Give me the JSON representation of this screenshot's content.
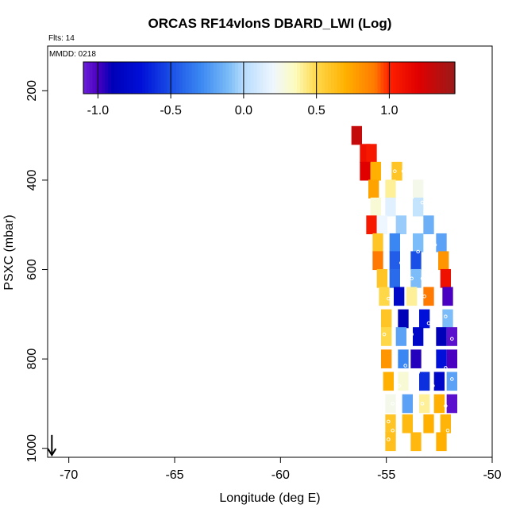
{
  "chart_data": {
    "type": "heatmap",
    "title": "ORCAS RF14vlonS DBARD_LWI (Log)",
    "annotation_flts": "Flts: 14",
    "annotation_mmdd": "MMDD: 0218",
    "xlabel": "Longitude (deg E)",
    "ylabel": "PSXC (mbar)",
    "xlim": [
      -71,
      -50
    ],
    "ylim": [
      1020,
      100
    ],
    "x_ticks": [
      -70,
      -65,
      -60,
      -55,
      -50
    ],
    "x_tick_labels": [
      "-70",
      "-65",
      "-60",
      "-55",
      "-50"
    ],
    "y_ticks": [
      200,
      400,
      600,
      800,
      1000
    ],
    "y_tick_labels": [
      "200",
      "400",
      "600",
      "800",
      "1000"
    ],
    "colorbar": {
      "range": [
        -1.1,
        1.45
      ],
      "ticks": [
        -1.0,
        -0.5,
        0.0,
        0.5,
        1.0
      ],
      "tick_labels": [
        "-1.0",
        "-0.5",
        "0.0",
        "0.5",
        "1.0"
      ],
      "stops": [
        {
          "v": -1.1,
          "color": "#6a1fd8"
        },
        {
          "v": -1.0,
          "color": "#4a00c0"
        },
        {
          "v": -0.9,
          "color": "#0000b8"
        },
        {
          "v": -0.7,
          "color": "#0010d8"
        },
        {
          "v": -0.5,
          "color": "#1a4fe6"
        },
        {
          "v": -0.3,
          "color": "#3a86f2"
        },
        {
          "v": -0.1,
          "color": "#7cbcf8"
        },
        {
          "v": 0.0,
          "color": "#b6dcfc"
        },
        {
          "v": 0.2,
          "color": "#eef6ff"
        },
        {
          "v": 0.35,
          "color": "#fcfcc0"
        },
        {
          "v": 0.5,
          "color": "#ffd84a"
        },
        {
          "v": 0.7,
          "color": "#ffb000"
        },
        {
          "v": 0.9,
          "color": "#ff7a00"
        },
        {
          "v": 1.0,
          "color": "#ff2000"
        },
        {
          "v": 1.2,
          "color": "#e00000"
        },
        {
          "v": 1.45,
          "color": "#9a1a1a"
        }
      ]
    },
    "cells": [
      [
        -56.4,
        300,
        1.3
      ],
      [
        -56.0,
        340,
        1.1
      ],
      [
        -55.7,
        340,
        1.05
      ],
      [
        -56.0,
        380,
        1.2
      ],
      [
        -55.5,
        380,
        0.7
      ],
      [
        -54.5,
        380,
        0.6
      ],
      [
        -55.6,
        420,
        0.75
      ],
      [
        -54.8,
        420,
        0.4
      ],
      [
        -53.5,
        420,
        0.25
      ],
      [
        -55.5,
        460,
        0.3
      ],
      [
        -54.8,
        460,
        0.15
      ],
      [
        -53.5,
        460,
        0.05
      ],
      [
        -55.7,
        500,
        1.05
      ],
      [
        -55.2,
        500,
        0.2
      ],
      [
        -54.3,
        500,
        -0.05
      ],
      [
        -53.0,
        500,
        -0.15
      ],
      [
        -55.4,
        540,
        0.6
      ],
      [
        -54.6,
        540,
        -0.3
      ],
      [
        -53.5,
        540,
        -0.1
      ],
      [
        -52.4,
        540,
        -0.2
      ],
      [
        -55.4,
        580,
        0.9
      ],
      [
        -54.6,
        580,
        -0.45
      ],
      [
        -53.6,
        580,
        -0.5
      ],
      [
        -52.3,
        580,
        0.8
      ],
      [
        -55.2,
        620,
        0.6
      ],
      [
        -54.6,
        620,
        -0.4
      ],
      [
        -53.6,
        620,
        -0.1
      ],
      [
        -52.2,
        620,
        1.1
      ],
      [
        -55.1,
        660,
        0.5
      ],
      [
        -54.4,
        660,
        -0.8
      ],
      [
        -53.8,
        660,
        0.4
      ],
      [
        -53.0,
        660,
        0.9
      ],
      [
        -52.1,
        660,
        -1.0
      ],
      [
        -55.0,
        710,
        0.6
      ],
      [
        -54.2,
        710,
        -0.9
      ],
      [
        -53.2,
        710,
        -0.7
      ],
      [
        -52.1,
        710,
        -0.1
      ],
      [
        -55.0,
        750,
        0.5
      ],
      [
        -54.3,
        750,
        -0.2
      ],
      [
        -53.5,
        750,
        -0.8
      ],
      [
        -52.4,
        750,
        -0.9
      ],
      [
        -51.9,
        750,
        -1.05
      ],
      [
        -55.0,
        800,
        0.8
      ],
      [
        -54.2,
        800,
        -0.3
      ],
      [
        -53.6,
        800,
        -0.95
      ],
      [
        -52.4,
        800,
        -0.7
      ],
      [
        -51.9,
        800,
        -1.0
      ],
      [
        -54.9,
        850,
        0.7
      ],
      [
        -54.2,
        850,
        0.3
      ],
      [
        -53.2,
        850,
        -0.6
      ],
      [
        -52.5,
        850,
        -0.8
      ],
      [
        -51.9,
        850,
        -0.2
      ],
      [
        -54.8,
        900,
        0.25
      ],
      [
        -54.0,
        900,
        -0.2
      ],
      [
        -53.2,
        900,
        0.4
      ],
      [
        -52.5,
        900,
        0.7
      ],
      [
        -51.9,
        900,
        -1.05
      ],
      [
        -54.8,
        945,
        0.6
      ],
      [
        -54.0,
        945,
        0.65
      ],
      [
        -53.0,
        945,
        0.7
      ],
      [
        -52.2,
        945,
        0.68
      ],
      [
        -54.8,
        985,
        0.62
      ],
      [
        -53.6,
        985,
        0.66
      ],
      [
        -52.4,
        985,
        0.7
      ]
    ],
    "cell_size": {
      "dx": 0.5,
      "dp": 42
    },
    "markers": [
      [
        -54.6,
        380
      ],
      [
        -54.2,
        380
      ],
      [
        -53.8,
        440
      ],
      [
        -53.3,
        450
      ],
      [
        -52.7,
        545
      ],
      [
        -53.5,
        560
      ],
      [
        -54.3,
        585
      ],
      [
        -52.8,
        585
      ],
      [
        -53.8,
        620
      ],
      [
        -53.3,
        620
      ],
      [
        -54.9,
        665
      ],
      [
        -53.2,
        660
      ],
      [
        -52.6,
        660
      ],
      [
        -54.6,
        720
      ],
      [
        -53.0,
        720
      ],
      [
        -52.2,
        705
      ],
      [
        -55.1,
        745
      ],
      [
        -53.8,
        745
      ],
      [
        -52.8,
        760
      ],
      [
        -51.9,
        755
      ],
      [
        -54.6,
        790
      ],
      [
        -54.1,
        815
      ],
      [
        -53.5,
        830
      ],
      [
        -52.2,
        820
      ],
      [
        -54.4,
        860
      ],
      [
        -52.8,
        860
      ],
      [
        -51.9,
        845
      ],
      [
        -54.7,
        900
      ],
      [
        -53.3,
        900
      ],
      [
        -52.2,
        905
      ],
      [
        -54.9,
        940
      ],
      [
        -54.7,
        960
      ],
      [
        -54.9,
        980
      ],
      [
        -53.0,
        990
      ],
      [
        -52.1,
        960
      ]
    ],
    "arrow": {
      "x": -70.8,
      "y_from": 970,
      "y_to": 1015
    }
  }
}
